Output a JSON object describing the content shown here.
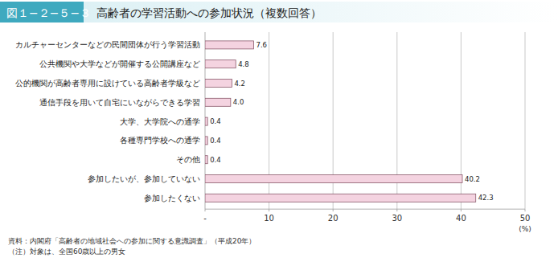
{
  "chart_data": {
    "type": "bar",
    "orientation": "horizontal",
    "figure_label": "図１−２−５−３",
    "title": "高齢者の学習活動への参加状況（複数回答）",
    "categories": [
      "カルチャーセンターなどの民間団体が行う学習活動",
      "公共機関や大学などが開催する公開講座など",
      "公的機関が高齢者専用に設けている高齢者学級など",
      "通信手段を用いて自宅にいながらできる学習",
      "大学、大学院への通学",
      "各種専門学校への通学",
      "その他",
      "参加したいが、参加していない",
      "参加したくない"
    ],
    "values": [
      7.6,
      4.8,
      4.2,
      4.0,
      0.4,
      0.4,
      0.4,
      40.2,
      42.3
    ],
    "value_labels": [
      "7.6",
      "4.8",
      "4.2",
      "4.0",
      "0.4",
      "0.4",
      "0.4",
      "40.2",
      "42.3"
    ],
    "data_labels": true,
    "color": "#f4d3e0",
    "xlim": [
      0,
      50
    ],
    "xticks": [
      {
        "value": 0,
        "label": "-"
      },
      10,
      20,
      30,
      40,
      50
    ],
    "xlabel": "(%)",
    "grid": true,
    "source": "資料：内閣府「高齢者の地域社会への参加に関する意識調査」（平成20年）",
    "note": "（注）対象は、全国60歳以上の男女"
  }
}
